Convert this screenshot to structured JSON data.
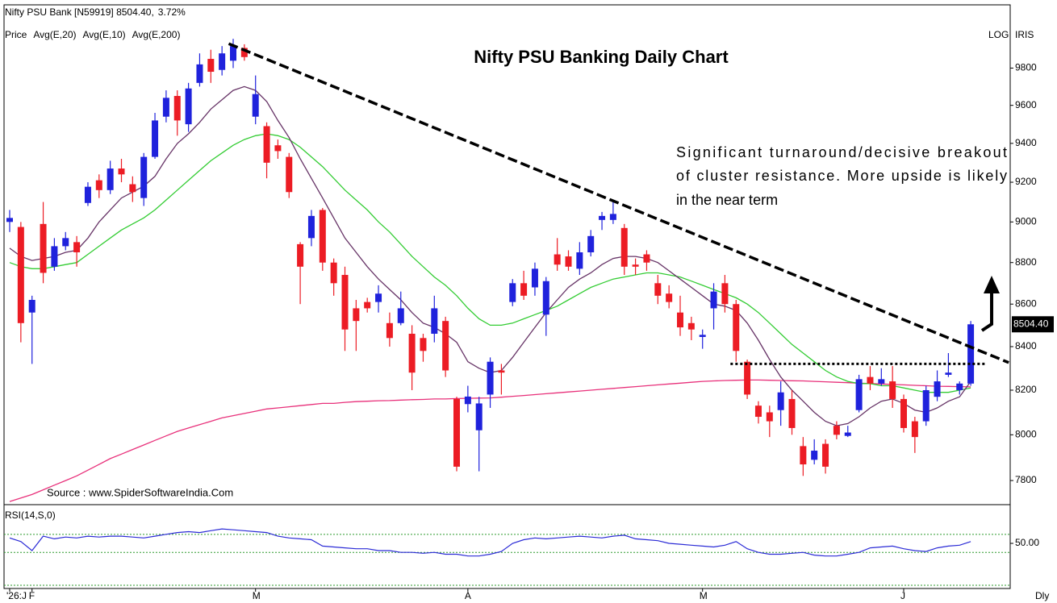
{
  "chart_data": [
    {
      "type": "candlestick",
      "title": "Nifty PSU Banking Daily Chart",
      "instrument": "Nifty PSU Bank [N59919] 8504.40,",
      "change": "3.72%",
      "price_label": "Price",
      "scale_label": "LOG",
      "provider": "IRIS",
      "source": "Source : www.SpiderSoftwareIndia.Com",
      "timeframe": "Dly",
      "annotation": [
        "Significant turnaround/decisive breakout",
        "of cluster resistance. More upside is likely",
        "in the near term"
      ],
      "log_scale": true,
      "up_color": "#1f22dc",
      "down_color": "#ec1c24",
      "change_color": "#1a9a1a",
      "ylim": [
        7700,
        10140
      ],
      "yticks": [
        7800,
        8000,
        8200,
        8400,
        8600,
        8800,
        9000,
        9200,
        9400,
        9600,
        9800
      ],
      "last_price_label": "8504.40",
      "trendline": {
        "x": [
          19.6,
          89.4
        ],
        "y": [
          9933,
          8326
        ]
      },
      "resistance": {
        "x": [
          64.5,
          87.4
        ],
        "value": 8320
      },
      "categories": [
        "'26:J",
        null,
        "F",
        null,
        null,
        null,
        null,
        null,
        null,
        null,
        null,
        null,
        null,
        null,
        null,
        null,
        null,
        null,
        null,
        null,
        null,
        null,
        "M",
        null,
        null,
        null,
        null,
        null,
        null,
        null,
        null,
        null,
        null,
        null,
        null,
        null,
        null,
        null,
        null,
        null,
        null,
        "A",
        null,
        null,
        null,
        null,
        null,
        null,
        null,
        null,
        null,
        null,
        null,
        null,
        null,
        null,
        null,
        null,
        null,
        null,
        null,
        null,
        "M",
        null,
        null,
        null,
        null,
        null,
        null,
        null,
        null,
        null,
        null,
        null,
        null,
        null,
        null,
        null,
        null,
        null,
        "J",
        null,
        null,
        null,
        null,
        null,
        null
      ],
      "open": [
        9000,
        8975,
        8560,
        8990,
        8780,
        8880,
        8900,
        9095,
        9210,
        9160,
        9270,
        9190,
        9120,
        9330,
        9540,
        9650,
        9500,
        9720,
        9850,
        9790,
        9840,
        9910,
        9540,
        9490,
        9390,
        9330,
        8890,
        8920,
        9060,
        8800,
        8740,
        8580,
        8610,
        8610,
        8510,
        8510,
        8460,
        8440,
        8460,
        8520,
        8160,
        8137,
        8020,
        8180,
        8290,
        8610,
        8700,
        8680,
        8550,
        8840,
        8830,
        8770,
        8850,
        9010,
        9010,
        8970,
        8790,
        8840,
        8700,
        8650,
        8560,
        8510,
        8445,
        8580,
        8700,
        8600,
        8330,
        8130,
        8100,
        8110,
        8160,
        7950,
        7890,
        7960,
        8040,
        7995,
        8110,
        8260,
        8230,
        8240,
        8160,
        8060,
        8060,
        8170,
        8270,
        8200,
        8230
      ],
      "high": [
        9060,
        9000,
        8640,
        9100,
        8920,
        8950,
        8930,
        9200,
        9240,
        9310,
        9320,
        9230,
        9350,
        9560,
        9680,
        9680,
        9720,
        9880,
        9900,
        9920,
        9960,
        9930,
        9760,
        9510,
        9420,
        9350,
        8900,
        9060,
        9070,
        8820,
        8780,
        8620,
        8630,
        8690,
        8560,
        8660,
        8500,
        8460,
        8640,
        8540,
        8170,
        8220,
        8170,
        8350,
        8320,
        8720,
        8760,
        8800,
        8730,
        8920,
        8860,
        8900,
        8960,
        9050,
        9100,
        8990,
        8820,
        8860,
        8740,
        8690,
        8640,
        8540,
        8480,
        8700,
        8740,
        8620,
        8340,
        8150,
        8130,
        8240,
        8200,
        7990,
        7980,
        7980,
        8060,
        8040,
        8270,
        8310,
        8300,
        8310,
        8180,
        8080,
        8220,
        8290,
        8370,
        8240,
        8520
      ],
      "low": [
        8950,
        8420,
        8320,
        8700,
        8760,
        8860,
        8780,
        9080,
        9120,
        9140,
        9200,
        9100,
        9080,
        9320,
        9510,
        9440,
        9460,
        9700,
        9720,
        9760,
        9800,
        9840,
        9500,
        9220,
        9320,
        9120,
        8600,
        8880,
        8760,
        8640,
        8380,
        8380,
        8560,
        8560,
        8400,
        8500,
        8200,
        8330,
        8420,
        8260,
        7840,
        8100,
        7840,
        8120,
        8180,
        8590,
        8620,
        8640,
        8450,
        8760,
        8760,
        8740,
        8830,
        8960,
        8990,
        8740,
        8740,
        8760,
        8600,
        8580,
        8450,
        8430,
        8390,
        8480,
        8560,
        8330,
        8160,
        8050,
        7990,
        8040,
        8000,
        7820,
        7870,
        7830,
        7980,
        7990,
        8100,
        8200,
        8220,
        8120,
        8010,
        7920,
        8040,
        8150,
        8260,
        8180,
        8220
      ],
      "close": [
        9020,
        8510,
        8620,
        8750,
        8880,
        8920,
        8850,
        9177,
        9160,
        9270,
        9240,
        9150,
        9330,
        9520,
        9640,
        9520,
        9690,
        9820,
        9780,
        9880,
        9920,
        9860,
        9660,
        9300,
        9360,
        9150,
        8780,
        9030,
        8800,
        8700,
        8480,
        8520,
        8580,
        8650,
        8440,
        8580,
        8280,
        8380,
        8580,
        8290,
        7860,
        8171,
        8140,
        8330,
        8280,
        8700,
        8640,
        8770,
        8710,
        8790,
        8780,
        8850,
        8930,
        9030,
        9040,
        8780,
        8780,
        8800,
        8640,
        8610,
        8490,
        8480,
        8455,
        8660,
        8600,
        8380,
        8180,
        8080,
        8060,
        8190,
        8030,
        7870,
        7930,
        7860,
        8000,
        8010,
        8250,
        8230,
        8250,
        8160,
        8030,
        7990,
        8200,
        8240,
        8280,
        8230,
        8504.4
      ],
      "series": [
        {
          "name": "Avg(E,20)",
          "color": "#33cc33",
          "values": [
            8800,
            8780,
            8770,
            8770,
            8780,
            8790,
            8800,
            8840,
            8880,
            8920,
            8960,
            8990,
            9020,
            9060,
            9110,
            9160,
            9210,
            9260,
            9310,
            9350,
            9390,
            9420,
            9440,
            9450,
            9440,
            9420,
            9380,
            9330,
            9280,
            9220,
            9160,
            9110,
            9060,
            9000,
            8950,
            8890,
            8830,
            8780,
            8730,
            8690,
            8640,
            8580,
            8530,
            8500,
            8500,
            8510,
            8530,
            8550,
            8570,
            8590,
            8620,
            8650,
            8680,
            8700,
            8720,
            8730,
            8740,
            8750,
            8750,
            8740,
            8730,
            8710,
            8690,
            8670,
            8650,
            8630,
            8600,
            8560,
            8510,
            8460,
            8410,
            8370,
            8330,
            8290,
            8260,
            8240,
            8230,
            8230,
            8220,
            8220,
            8210,
            8200,
            8190,
            8190,
            8190,
            8200,
            8210
          ]
        },
        {
          "name": "Avg(E,10)",
          "color": "#663366",
          "values": [
            8870,
            8830,
            8810,
            8820,
            8830,
            8850,
            8860,
            8920,
            9000,
            9060,
            9120,
            9150,
            9180,
            9230,
            9320,
            9400,
            9450,
            9510,
            9580,
            9630,
            9680,
            9700,
            9680,
            9620,
            9520,
            9430,
            9320,
            9220,
            9120,
            9020,
            8920,
            8850,
            8780,
            8720,
            8670,
            8620,
            8560,
            8510,
            8490,
            8460,
            8420,
            8330,
            8300,
            8280,
            8290,
            8350,
            8420,
            8490,
            8560,
            8620,
            8680,
            8720,
            8750,
            8790,
            8820,
            8830,
            8830,
            8820,
            8800,
            8760,
            8720,
            8680,
            8640,
            8600,
            8590,
            8570,
            8510,
            8430,
            8340,
            8260,
            8200,
            8150,
            8100,
            8060,
            8040,
            8050,
            8080,
            8120,
            8150,
            8160,
            8140,
            8110,
            8100,
            8120,
            8150,
            8170,
            8240
          ]
        },
        {
          "name": "Avg(E,200)",
          "color": "#e8307a",
          "values": [
            7710,
            7725,
            7740,
            7760,
            7780,
            7800,
            7820,
            7845,
            7870,
            7895,
            7915,
            7935,
            7955,
            7975,
            7995,
            8015,
            8030,
            8045,
            8060,
            8075,
            8085,
            8095,
            8105,
            8115,
            8120,
            8125,
            8130,
            8135,
            8140,
            8140,
            8145,
            8148,
            8150,
            8152,
            8153,
            8155,
            8157,
            8158,
            8160,
            8160,
            8162,
            8163,
            8164,
            8165,
            8168,
            8172,
            8176,
            8180,
            8184,
            8188,
            8192,
            8196,
            8200,
            8204,
            8208,
            8212,
            8216,
            8220,
            8224,
            8228,
            8232,
            8236,
            8240,
            8242,
            8244,
            8245,
            8246,
            8246,
            8245,
            8244,
            8243,
            8242,
            8240,
            8238,
            8236,
            8234,
            8232,
            8230,
            8228,
            8226,
            8224,
            8222,
            8220,
            8218,
            8217,
            8216,
            8215
          ]
        }
      ]
    },
    {
      "type": "line",
      "title": "RSI(14,S,0)",
      "color": "#2b2bd6",
      "level_color": "#2e9a2e",
      "ylim": [
        0,
        92
      ],
      "yticks": [
        {
          "value": 50,
          "label": "50.00"
        }
      ],
      "levels": [
        60,
        40
      ],
      "values": [
        56,
        52,
        42,
        58,
        55,
        57,
        56,
        58,
        57,
        58,
        58,
        57,
        56,
        58,
        60,
        62,
        63,
        62,
        64,
        66,
        65,
        64,
        63,
        62,
        58,
        56,
        55,
        54,
        47,
        46,
        45,
        44,
        44,
        42,
        42,
        40,
        40,
        39,
        40,
        38,
        38,
        36,
        36,
        38,
        41,
        50,
        54,
        56,
        55,
        56,
        57,
        58,
        57,
        56,
        58,
        59,
        55,
        54,
        53,
        50,
        49,
        48,
        47,
        46,
        48,
        52,
        44,
        40,
        38,
        38,
        39,
        40,
        37,
        36,
        36,
        38,
        40,
        45,
        46,
        47,
        44,
        42,
        41,
        45,
        47,
        48,
        52
      ]
    }
  ]
}
